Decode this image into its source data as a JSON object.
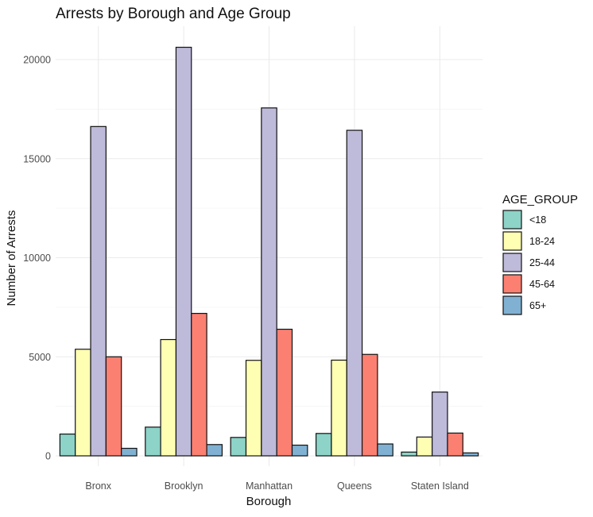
{
  "chart_data": {
    "type": "bar",
    "title": "Arrests by Borough and Age Group",
    "xlabel": "Borough",
    "ylabel": "Number of Arrests",
    "categories": [
      "Bronx",
      "Brooklyn",
      "Manhattan",
      "Queens",
      "Staten Island"
    ],
    "ylim": [
      0,
      22000
    ],
    "yticks": [
      0,
      5000,
      10000,
      15000,
      20000
    ],
    "ytick_labels": [
      "0",
      "5000",
      "10000",
      "15000",
      "20000"
    ],
    "grid": true,
    "legend": {
      "title": "AGE_GROUP",
      "position": "right"
    },
    "series": [
      {
        "name": "<18",
        "color": "#8DD3C7",
        "values": [
          1100,
          1450,
          930,
          1130,
          190
        ]
      },
      {
        "name": "18-24",
        "color": "#FFFFB3",
        "values": [
          5380,
          5870,
          4820,
          4830,
          950
        ]
      },
      {
        "name": "25-44",
        "color": "#BEBADA",
        "values": [
          16620,
          20620,
          17560,
          16430,
          3220
        ]
      },
      {
        "name": "45-64",
        "color": "#FB8072",
        "values": [
          5000,
          7190,
          6390,
          5120,
          1150
        ]
      },
      {
        "name": "65+",
        "color": "#80B1D3",
        "values": [
          380,
          570,
          540,
          600,
          150
        ]
      }
    ]
  }
}
